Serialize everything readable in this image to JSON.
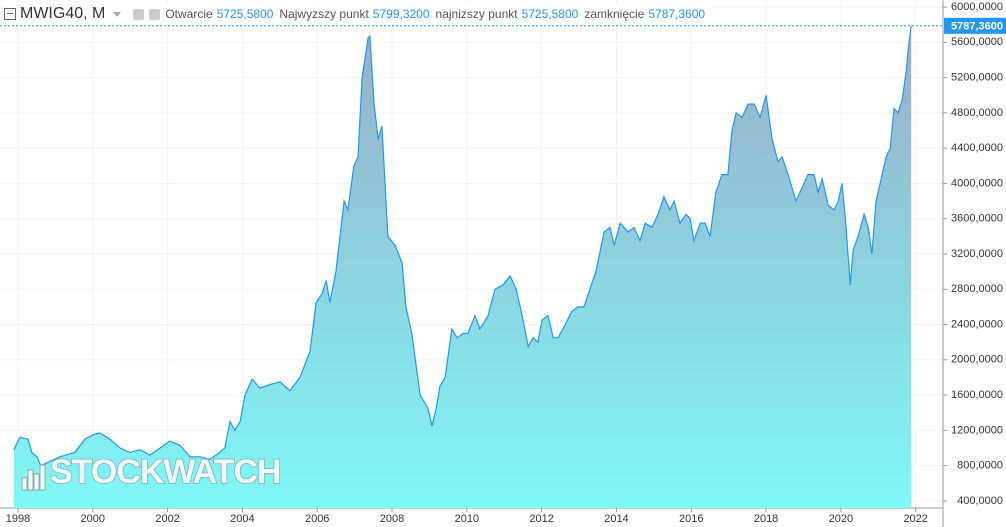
{
  "header": {
    "symbol": "MWIG40, M",
    "items": [
      {
        "label": "Otwarcie",
        "value": "5725,5800"
      },
      {
        "label": "Najwyzszy punkt",
        "value": "5799,3200"
      },
      {
        "label": "najnizszy punkt",
        "value": "5725,5800"
      },
      {
        "label": "zamknięcie",
        "value": "5787,3600"
      }
    ]
  },
  "watermark": "STOCKWATCH",
  "chart_data": {
    "type": "area",
    "x": [
      1997.89,
      1998.05,
      1998.27,
      1998.37,
      1998.51,
      1998.61,
      1999.12,
      1999.52,
      1999.79,
      2000.01,
      2000.19,
      2000.46,
      2000.73,
      2000.99,
      2001.26,
      2001.53,
      2001.8,
      2002.06,
      2002.33,
      2002.6,
      2002.87,
      2003.13,
      2003.4,
      2003.53,
      2003.67,
      2003.8,
      2003.94,
      2004.07,
      2004.26,
      2004.47,
      2004.74,
      2005.01,
      2005.27,
      2005.54,
      2005.81,
      2005.97,
      2006.13,
      2006.24,
      2006.34,
      2006.5,
      2006.72,
      2006.82,
      2006.98,
      2007.09,
      2007.2,
      2007.36,
      2007.41,
      2007.52,
      2007.63,
      2007.73,
      2007.89,
      2008.08,
      2008.27,
      2008.37,
      2008.53,
      2008.75,
      2008.96,
      2009.07,
      2009.18,
      2009.28,
      2009.42,
      2009.6,
      2009.74,
      2009.9,
      2010.03,
      2010.22,
      2010.35,
      2010.57,
      2010.75,
      2010.97,
      2011.16,
      2011.32,
      2011.48,
      2011.64,
      2011.77,
      2011.9,
      2012.01,
      2012.17,
      2012.31,
      2012.44,
      2012.63,
      2012.81,
      2012.97,
      2013.13,
      2013.29,
      2013.45,
      2013.67,
      2013.83,
      2013.94,
      2014.1,
      2014.31,
      2014.47,
      2014.63,
      2014.77,
      2014.95,
      2015.11,
      2015.27,
      2015.43,
      2015.54,
      2015.7,
      2015.86,
      2015.97,
      2016.07,
      2016.24,
      2016.37,
      2016.5,
      2016.66,
      2016.82,
      2016.98,
      2017.09,
      2017.2,
      2017.36,
      2017.52,
      2017.68,
      2017.84,
      2018.0,
      2018.16,
      2018.32,
      2018.43,
      2018.59,
      2018.8,
      2018.96,
      2019.12,
      2019.28,
      2019.39,
      2019.5,
      2019.66,
      2019.82,
      2019.93,
      2020.03,
      2020.14,
      2020.25,
      2020.33,
      2020.46,
      2020.62,
      2020.73,
      2020.83,
      2020.94,
      2021.05,
      2021.21,
      2021.32,
      2021.42,
      2021.53,
      2021.64,
      2021.74,
      2021.82,
      2021.88
    ],
    "values": [
      980,
      1120,
      1100,
      950,
      900,
      800,
      900,
      950,
      1100,
      1150,
      1170,
      1100,
      1000,
      950,
      980,
      920,
      1000,
      1080,
      1030,
      900,
      900,
      870,
      950,
      1000,
      1300,
      1200,
      1300,
      1600,
      1780,
      1680,
      1720,
      1750,
      1650,
      1800,
      2100,
      2650,
      2750,
      2900,
      2650,
      3000,
      3800,
      3700,
      4200,
      4300,
      5200,
      5650,
      5670,
      4900,
      4500,
      4650,
      3400,
      3300,
      3100,
      2600,
      2300,
      1600,
      1450,
      1250,
      1450,
      1700,
      1800,
      2350,
      2250,
      2300,
      2300,
      2500,
      2350,
      2500,
      2800,
      2850,
      2950,
      2800,
      2500,
      2150,
      2250,
      2200,
      2450,
      2500,
      2250,
      2250,
      2400,
      2550,
      2600,
      2600,
      2800,
      3000,
      3450,
      3500,
      3300,
      3550,
      3450,
      3500,
      3350,
      3550,
      3500,
      3650,
      3850,
      3700,
      3800,
      3550,
      3650,
      3600,
      3350,
      3550,
      3550,
      3400,
      3900,
      4100,
      4100,
      4600,
      4800,
      4750,
      4900,
      4900,
      4750,
      5000,
      4500,
      4250,
      4300,
      4100,
      3800,
      3950,
      4100,
      4100,
      3900,
      4050,
      3750,
      3700,
      3800,
      4000,
      3500,
      2850,
      3250,
      3400,
      3650,
      3500,
      3200,
      3800,
      4000,
      4300,
      4400,
      4850,
      4800,
      4950,
      5250,
      5600,
      5787.36
    ],
    "line_color": "#2196f3",
    "area_colors": [
      "#9aaec6",
      "#7ff8f8"
    ],
    "last_price": {
      "value": 5787.36,
      "label": "5787,3600"
    },
    "xlim": [
      1997.52,
      2022.73
    ],
    "xticks": [
      1998,
      2000,
      2002,
      2004,
      2006,
      2008,
      2010,
      2012,
      2014,
      2016,
      2018,
      2020,
      2022
    ],
    "ylim": [
      320,
      6080
    ],
    "yticks": [
      {
        "value": 400,
        "label": "400,0000"
      },
      {
        "value": 800,
        "label": "800,0000"
      },
      {
        "value": 1200,
        "label": "1200,0000"
      },
      {
        "value": 1600,
        "label": "1600,0000"
      },
      {
        "value": 2000,
        "label": "2000,0000"
      },
      {
        "value": 2400,
        "label": "2400,0000"
      },
      {
        "value": 2800,
        "label": "2800,0000"
      },
      {
        "value": 3200,
        "label": "3200,0000"
      },
      {
        "value": 3600,
        "label": "3600,0000"
      },
      {
        "value": 4000,
        "label": "4000,0000"
      },
      {
        "value": 4400,
        "label": "4400,0000"
      },
      {
        "value": 4800,
        "label": "4800,0000"
      },
      {
        "value": 5200,
        "label": "5200,0000"
      },
      {
        "value": 5600,
        "label": "5600,0000"
      },
      {
        "value": 6000,
        "label": "6000,0000"
      }
    ],
    "grid": true
  }
}
